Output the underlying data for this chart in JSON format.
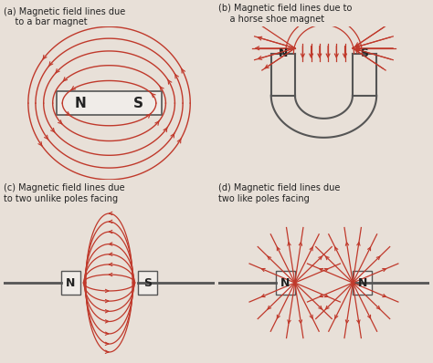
{
  "bg_color": "#e8e0d8",
  "line_color": "#c0392b",
  "magnet_edge_color": "#555555",
  "magnet_fill_color": "#f0ece8",
  "text_color": "#222222",
  "title_a": "(a) Magnetic field lines due\n    to a bar magnet",
  "title_b": "(b) Magnetic field lines due to\n    a horse shoe magnet",
  "title_c": "(c) Magnetic field lines due\nto two unlike poles facing",
  "title_d": "(d) Magnetic field lines due\ntwo like poles facing"
}
